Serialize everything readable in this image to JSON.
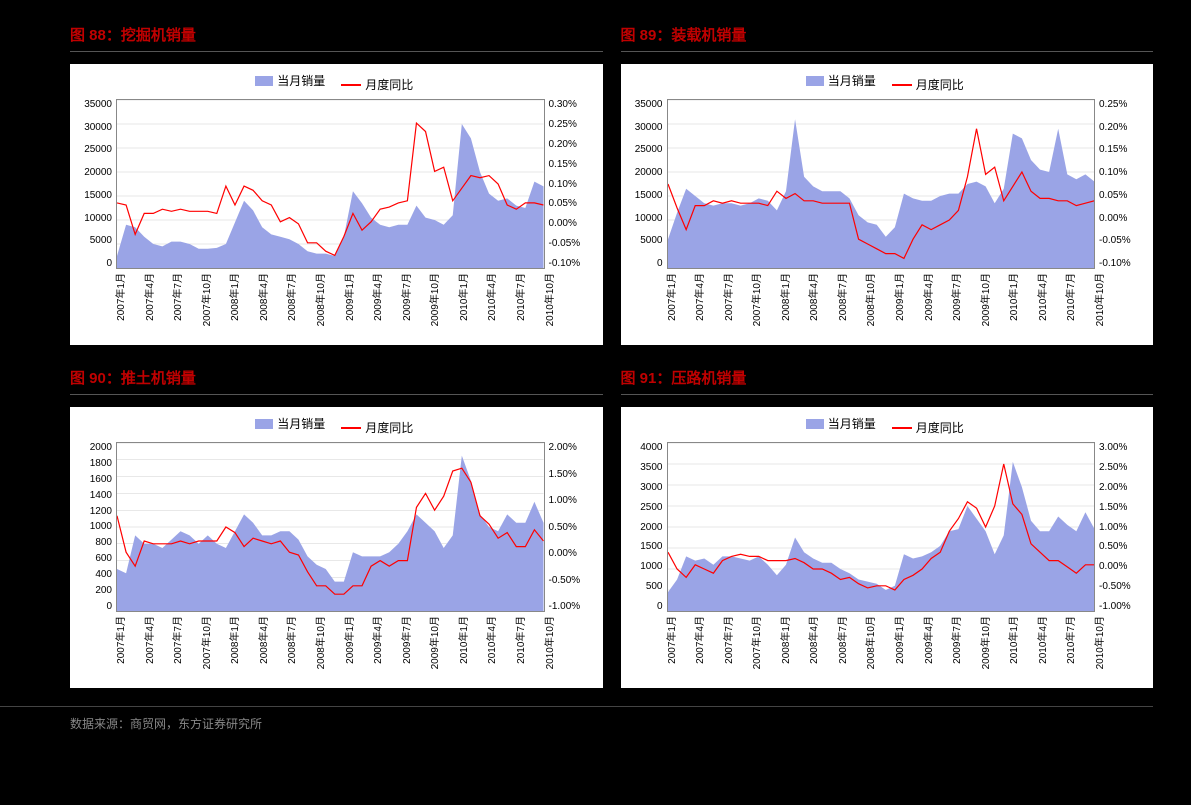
{
  "source_text": "数据来源：商贸网，东方证券研究所",
  "legend": {
    "area": "当月销量",
    "line": "月度同比"
  },
  "x_labels": [
    "2007年1月",
    "2007年4月",
    "2007年7月",
    "2007年10月",
    "2008年1月",
    "2008年4月",
    "2008年7月",
    "2008年10月",
    "2009年1月",
    "2009年4月",
    "2009年7月",
    "2009年10月",
    "2010年1月",
    "2010年4月",
    "2010年7月",
    "2010年10月"
  ],
  "colors": {
    "area_fill": "#9aa4e6",
    "line_stroke": "#ff0000",
    "axis": "#888888",
    "grid": "#d0d0d0",
    "title": "#c00000",
    "bg": "#000000",
    "chart_bg": "#ffffff"
  },
  "charts": [
    {
      "title": "图 88：挖掘机销量",
      "type": "area+line",
      "y_left": {
        "min": 0,
        "max": 35000,
        "step": 5000,
        "ticks": [
          "35000",
          "30000",
          "25000",
          "20000",
          "15000",
          "10000",
          "5000",
          "0"
        ]
      },
      "y_right": {
        "min": -0.1,
        "max": 0.3,
        "step": 0.05,
        "ticks": [
          "0.30%",
          "0.25%",
          "0.20%",
          "0.15%",
          "0.10%",
          "0.05%",
          "0.00%",
          "-0.05%",
          "-0.10%"
        ]
      },
      "area_values": [
        2500,
        9000,
        8500,
        6500,
        5000,
        4500,
        5500,
        5500,
        5000,
        4000,
        4000,
        4200,
        5000,
        9500,
        14000,
        12000,
        8500,
        7000,
        6500,
        6000,
        5000,
        3500,
        3000,
        3000,
        2500,
        6500,
        16000,
        13500,
        10500,
        9000,
        8500,
        9000,
        9000,
        13000,
        10500,
        10000,
        9000,
        11000,
        30000,
        27000,
        20000,
        15500,
        14000,
        14500,
        13000,
        12500,
        18000,
        17000
      ],
      "line_values": [
        0.055,
        0.05,
        -0.02,
        0.03,
        0.03,
        0.04,
        0.035,
        0.04,
        0.035,
        0.035,
        0.035,
        0.03,
        0.095,
        0.05,
        0.095,
        0.085,
        0.06,
        0.05,
        0.01,
        0.02,
        0.005,
        -0.04,
        -0.04,
        -0.06,
        -0.07,
        -0.025,
        0.03,
        -0.01,
        0.01,
        0.04,
        0.045,
        0.055,
        0.06,
        0.245,
        0.225,
        0.13,
        0.14,
        0.06,
        0.09,
        0.12,
        0.115,
        0.12,
        0.1,
        0.05,
        0.04,
        0.055,
        0.055,
        0.05
      ]
    },
    {
      "title": "图 89：装载机销量",
      "type": "area+line",
      "y_left": {
        "min": 0,
        "max": 35000,
        "step": 5000,
        "ticks": [
          "35000",
          "30000",
          "25000",
          "20000",
          "15000",
          "10000",
          "5000",
          "0"
        ]
      },
      "y_right": {
        "min": -0.1,
        "max": 0.25,
        "step": 0.05,
        "ticks": [
          "0.25%",
          "0.20%",
          "0.15%",
          "0.10%",
          "0.05%",
          "0.00%",
          "-0.05%",
          "-0.10%"
        ]
      },
      "area_values": [
        6000,
        11500,
        16500,
        15000,
        13500,
        13000,
        13500,
        13500,
        13000,
        13500,
        14500,
        14000,
        12000,
        16000,
        31000,
        19000,
        17000,
        16000,
        16000,
        16000,
        14500,
        11000,
        9500,
        9000,
        6500,
        8500,
        15500,
        14500,
        14000,
        14000,
        15000,
        15500,
        15500,
        17500,
        18000,
        17000,
        13500,
        16500,
        28000,
        27000,
        22500,
        20500,
        20000,
        29000,
        19500,
        18500,
        19500,
        18000
      ],
      "line_values": [
        0.075,
        0.025,
        -0.02,
        0.03,
        0.03,
        0.04,
        0.035,
        0.04,
        0.035,
        0.035,
        0.035,
        0.03,
        0.06,
        0.045,
        0.055,
        0.04,
        0.04,
        0.035,
        0.035,
        0.035,
        0.035,
        -0.04,
        -0.05,
        -0.06,
        -0.07,
        -0.07,
        -0.08,
        -0.04,
        -0.01,
        -0.02,
        -0.01,
        0,
        0.02,
        0.09,
        0.19,
        0.095,
        0.11,
        0.04,
        0.07,
        0.1,
        0.06,
        0.045,
        0.045,
        0.04,
        0.04,
        0.03,
        0.035,
        0.04
      ]
    },
    {
      "title": "图 90：推土机销量",
      "type": "area+line",
      "y_left": {
        "min": 0,
        "max": 2000,
        "step": 200,
        "ticks": [
          "2000",
          "1800",
          "1600",
          "1400",
          "1200",
          "1000",
          "800",
          "600",
          "400",
          "200",
          "0"
        ]
      },
      "y_right": {
        "min": -1.0,
        "max": 2.0,
        "step": 0.5,
        "ticks": [
          "2.00%",
          "1.50%",
          "1.00%",
          "0.50%",
          "0.00%",
          "-0.50%",
          "-1.00%"
        ]
      },
      "area_values": [
        500,
        450,
        900,
        800,
        800,
        750,
        850,
        950,
        900,
        800,
        900,
        800,
        750,
        950,
        1150,
        1050,
        900,
        900,
        950,
        950,
        850,
        650,
        550,
        500,
        350,
        350,
        700,
        650,
        650,
        650,
        700,
        800,
        950,
        1150,
        1050,
        950,
        750,
        900,
        1850,
        1550,
        1150,
        1000,
        950,
        1150,
        1050,
        1050,
        1300,
        1050
      ],
      "line_values": [
        0.7,
        0.05,
        -0.2,
        0.25,
        0.2,
        0.2,
        0.2,
        0.25,
        0.2,
        0.25,
        0.25,
        0.25,
        0.5,
        0.4,
        0.15,
        0.3,
        0.25,
        0.2,
        0.25,
        0.05,
        0.0,
        -0.3,
        -0.55,
        -0.55,
        -0.7,
        -0.7,
        -0.55,
        -0.55,
        -0.2,
        -0.1,
        -0.2,
        -0.1,
        -0.1,
        0.85,
        1.1,
        0.8,
        1.05,
        1.5,
        1.55,
        1.3,
        0.7,
        0.55,
        0.3,
        0.4,
        0.15,
        0.15,
        0.45,
        0.25
      ]
    },
    {
      "title": "图 91：压路机销量",
      "type": "area+line",
      "y_left": {
        "min": 0,
        "max": 4000,
        "step": 500,
        "ticks": [
          "4000",
          "3500",
          "3000",
          "2500",
          "2000",
          "1500",
          "1000",
          "500",
          "0"
        ]
      },
      "y_right": {
        "min": -1.0,
        "max": 3.0,
        "step": 0.5,
        "ticks": [
          "3.00%",
          "2.50%",
          "2.00%",
          "1.50%",
          "1.00%",
          "0.50%",
          "0.00%",
          "-0.50%",
          "-1.00%"
        ]
      },
      "area_values": [
        450,
        750,
        1300,
        1200,
        1250,
        1100,
        1300,
        1300,
        1250,
        1200,
        1300,
        1100,
        850,
        1100,
        1750,
        1400,
        1250,
        1150,
        1150,
        1000,
        900,
        750,
        700,
        650,
        500,
        600,
        1350,
        1250,
        1300,
        1400,
        1550,
        1900,
        1950,
        2500,
        2200,
        1900,
        1350,
        1800,
        3550,
        2950,
        2150,
        1900,
        1900,
        2250,
        2050,
        1900,
        2350,
        1950
      ],
      "line_values": [
        0.4,
        0.0,
        -0.2,
        0.1,
        0.0,
        -0.1,
        0.2,
        0.3,
        0.35,
        0.3,
        0.3,
        0.2,
        0.2,
        0.2,
        0.25,
        0.15,
        0.0,
        0.0,
        -0.1,
        -0.25,
        -0.2,
        -0.35,
        -0.45,
        -0.4,
        -0.4,
        -0.5,
        -0.25,
        -0.15,
        0.0,
        0.25,
        0.4,
        0.9,
        1.2,
        1.6,
        1.45,
        1.0,
        1.5,
        2.5,
        1.55,
        1.3,
        0.6,
        0.4,
        0.2,
        0.2,
        0.05,
        -0.1,
        0.1,
        0.1
      ]
    }
  ]
}
